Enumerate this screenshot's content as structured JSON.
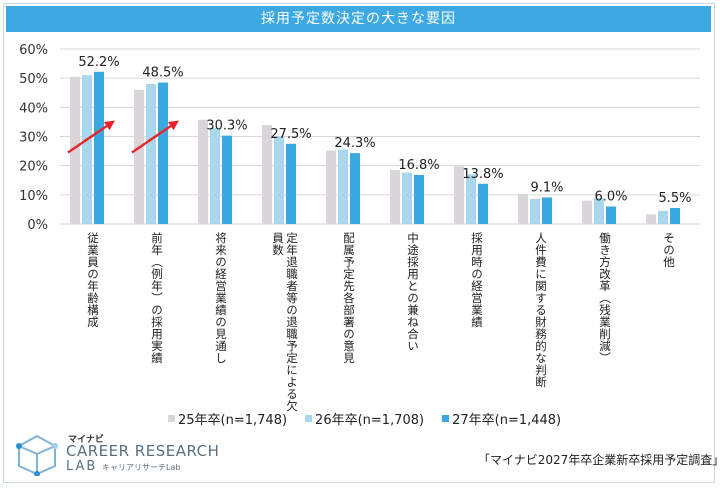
{
  "chart_data": {
    "type": "bar",
    "title": "採用予定数決定の大きな要因",
    "categories": [
      "従業員の年齢構成",
      "前年（例年）の採用実績",
      "将来の経営業績の見通し",
      "定年退職者等の退職予定による欠員数",
      "配属予定先各部署の意見",
      "中途採用との兼ね合い",
      "採用時の経営業績",
      "人件費に関する財務的な判断",
      "働き方改革（残業削減）",
      "その他"
    ],
    "series": [
      {
        "name": "25年卒(n=1,748)",
        "color": "#d9d5da",
        "values": [
          50.5,
          46.0,
          35.7,
          33.9,
          25.2,
          18.5,
          19.8,
          10.3,
          8.0,
          3.3
        ]
      },
      {
        "name": "26年卒(n=1,708)",
        "color": "#a9d8ec",
        "values": [
          51.0,
          48.0,
          33.0,
          30.0,
          25.5,
          17.6,
          17.0,
          8.6,
          8.9,
          4.5
        ]
      },
      {
        "name": "27年卒(n=1,448)",
        "color": "#3aa9df",
        "values": [
          52.2,
          48.5,
          30.3,
          27.5,
          24.3,
          16.8,
          13.8,
          9.1,
          6.0,
          5.5
        ]
      }
    ],
    "data_labels": [
      "52.2%",
      "48.5%",
      "30.3%",
      "27.5%",
      "24.3%",
      "16.8%",
      "13.8%",
      "9.1%",
      "6.0%",
      "5.5%"
    ],
    "y_ticks": [
      "0%",
      "10%",
      "20%",
      "30%",
      "40%",
      "50%",
      "60%"
    ],
    "ylim": [
      0,
      60
    ],
    "xlabel": "",
    "ylabel": "",
    "legend_position": "bottom",
    "annotations": [
      "rising-arrow",
      "rising-arrow"
    ]
  },
  "logo": {
    "small": "マイナビ",
    "main": "CAREER RESEARCH",
    "lab": "LAB",
    "sub": "キャリアリサーチLab"
  },
  "source": "「マイナビ2027年卒企業新卒採用予定調査」",
  "colors": {
    "title_bar": "#3ca9e2",
    "arrow": "#e8242a",
    "grid": "#d6d6d6"
  }
}
